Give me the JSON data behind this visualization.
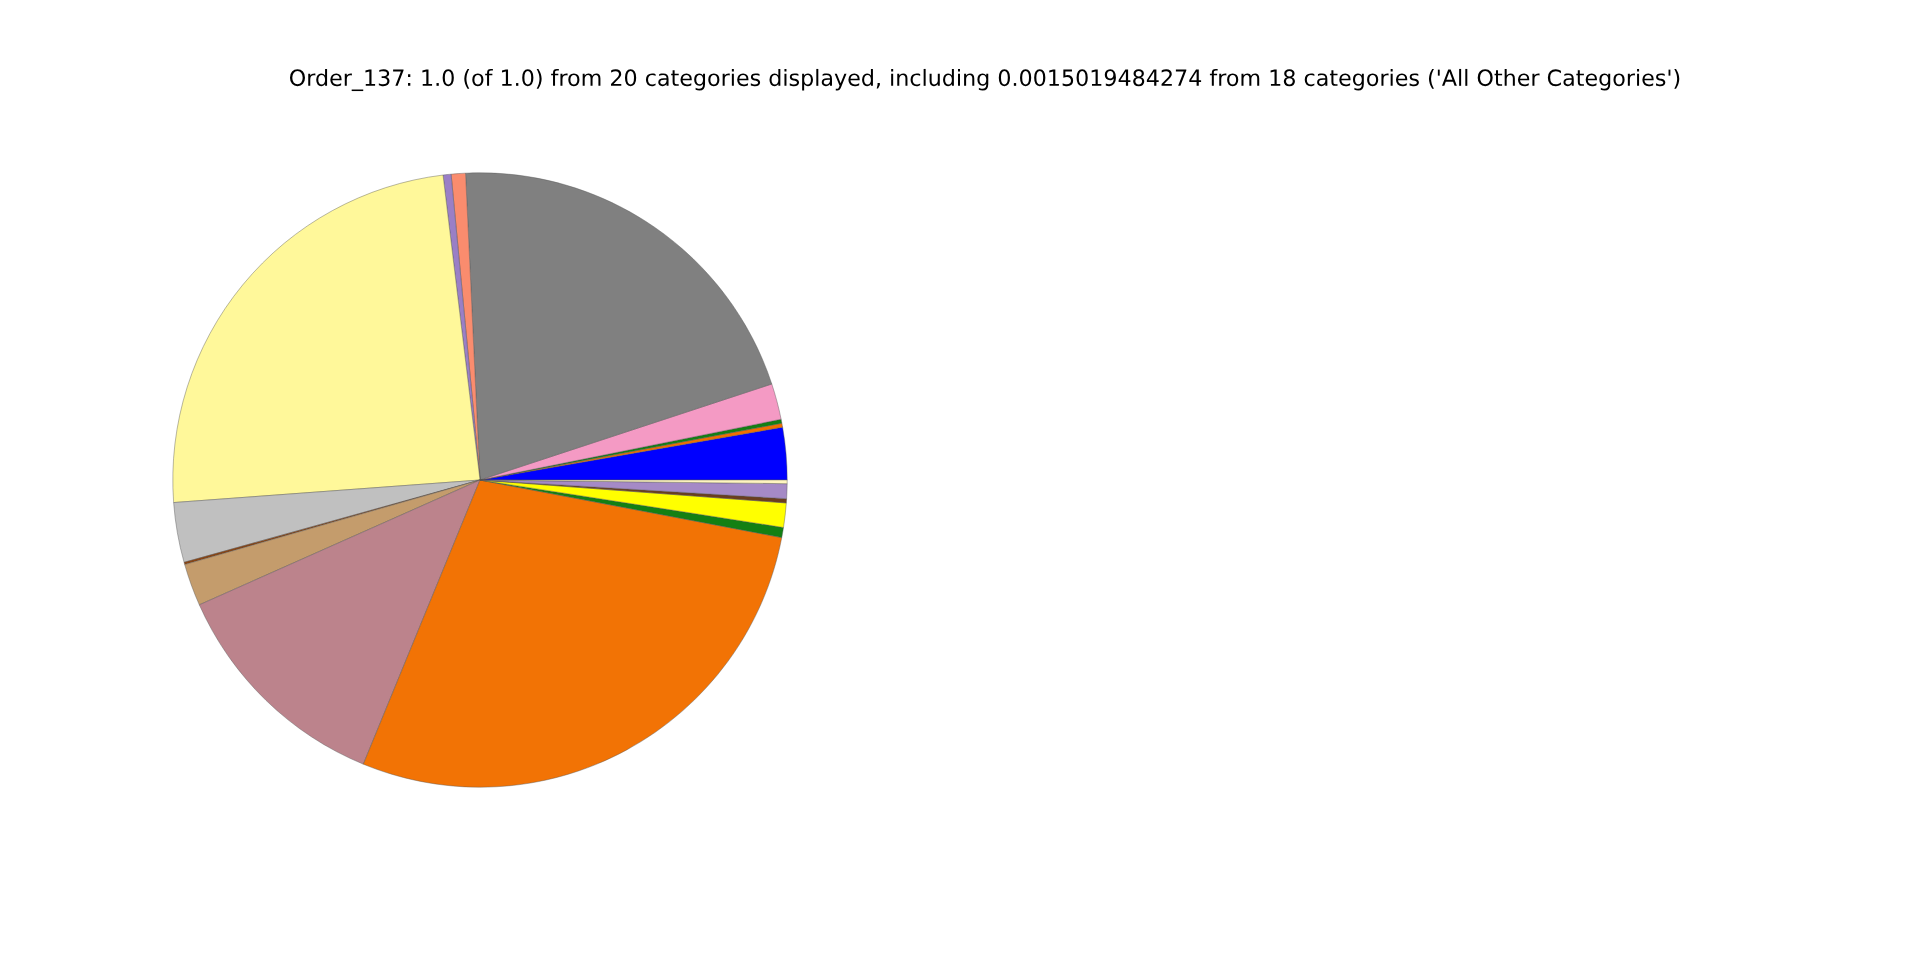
{
  "chart_data": {
    "type": "pie",
    "title": "Order_137: 1.0 (of 1.0) from 20 categories displayed, including 0.0015019484274 from 18 categories ('All Other Categories')",
    "categories": [
      null,
      null,
      null,
      null,
      null,
      null,
      null,
      null,
      null,
      null,
      null,
      null,
      null,
      null,
      null,
      null,
      null,
      null
    ],
    "values": [
      2.75,
      0.21,
      0.21,
      1.89,
      20.69,
      0.75,
      0.42,
      24.25,
      3.15,
      0.12,
      2.22,
      12.14,
      28.2,
      0.53,
      1.28,
      0.22,
      0.78,
      0.19
    ],
    "colors": [
      "#0000ff",
      "#f07000",
      "#138013",
      "#f49ac4",
      "#808080",
      "#fa8c6e",
      "#9a7fc6",
      "#fff89a",
      "#c0c0c0",
      "#8b4513",
      "#c49c6c",
      "#bc838c",
      "#f27305",
      "#138013",
      "#ffff00",
      "#6b3e1e",
      "#a58ac6",
      "#fff5c0"
    ]
  }
}
